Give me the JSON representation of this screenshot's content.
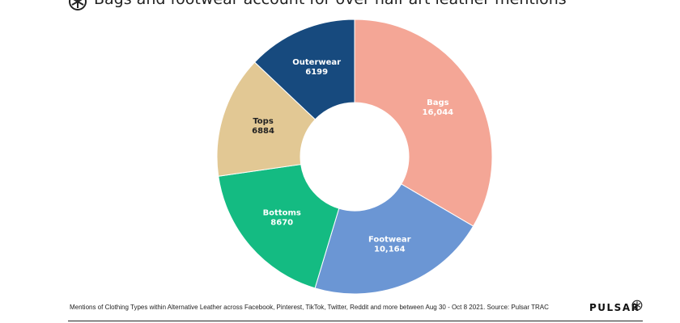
{
  "title": "Bags and footwear account for over half art leather mentions",
  "source": "Mentions of Clothing Types within Alternative Leather across Facebook, Pinterest, TikTok, Twitter, Reddit and more between Aug 30 - Oct 8 2021. Source: Pulsar TRAC",
  "brand": "PULSAR",
  "icons": {
    "title_icon": "pulsar-logo-icon",
    "brand_icon": "pulsar-mark-icon"
  },
  "chart_data": {
    "type": "pie",
    "title": "Bags and footwear account for over half art leather mentions",
    "legend": "labels on slices",
    "donut": true,
    "slices": [
      {
        "label": "Bags",
        "value": 16044,
        "value_label": "16,044",
        "color": "#f4a696",
        "text_color": "#ffffff"
      },
      {
        "label": "Footwear",
        "value": 10164,
        "value_label": "10,164",
        "color": "#6b96d4",
        "text_color": "#ffffff"
      },
      {
        "label": "Bottoms",
        "value": 8670,
        "value_label": "8670",
        "color": "#14bb82",
        "text_color": "#ffffff"
      },
      {
        "label": "Tops",
        "value": 6884,
        "value_label": "6884",
        "color": "#e2c894",
        "text_color": "#222222"
      },
      {
        "label": "Outerwear",
        "value": 6199,
        "value_label": "6199",
        "color": "#174a7e",
        "text_color": "#ffffff"
      }
    ]
  }
}
